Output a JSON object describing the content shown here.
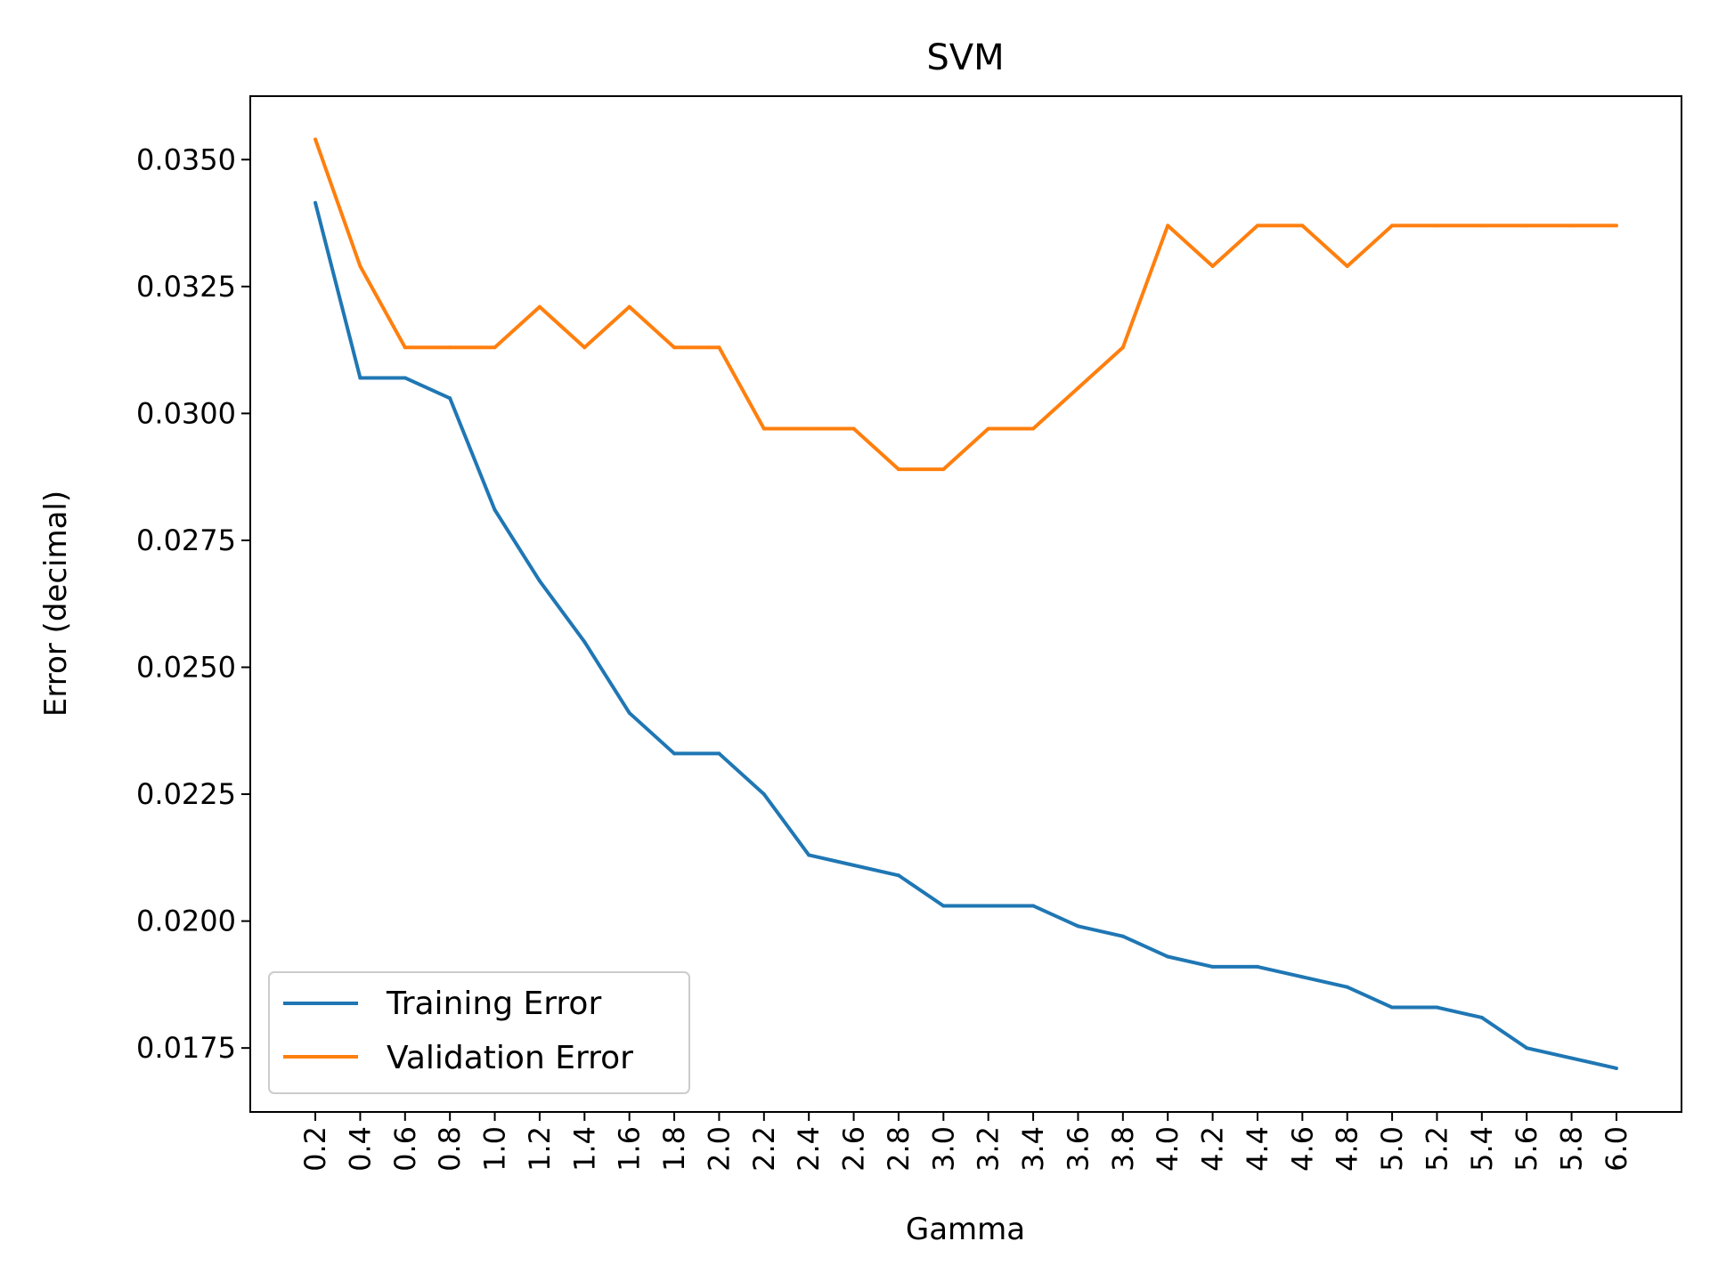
{
  "chart_data": {
    "type": "line",
    "title": "SVM",
    "xlabel": "Gamma",
    "ylabel": "Error (decimal)",
    "x": [
      0.2,
      0.4,
      0.6,
      0.8,
      1.0,
      1.2,
      1.4,
      1.6,
      1.8,
      2.0,
      2.2,
      2.4,
      2.6,
      2.8,
      3.0,
      3.2,
      3.4,
      3.6,
      3.8,
      4.0,
      4.2,
      4.4,
      4.6,
      4.8,
      5.0,
      5.2,
      5.4,
      5.6,
      5.8,
      6.0
    ],
    "x_tick_labels": [
      "0.2",
      "0.4",
      "0.6",
      "0.8",
      "1.0",
      "1.2",
      "1.4",
      "1.6",
      "1.8",
      "2.0",
      "2.2",
      "2.4",
      "2.6",
      "2.8",
      "3.0",
      "3.2",
      "3.4",
      "3.6",
      "3.8",
      "4.0",
      "4.2",
      "4.4",
      "4.6",
      "4.8",
      "5.0",
      "5.2",
      "5.4",
      "5.6",
      "5.8",
      "6.0"
    ],
    "y_ticks": [
      0.0175,
      0.02,
      0.0225,
      0.025,
      0.0275,
      0.03,
      0.0325,
      0.035
    ],
    "y_tick_labels": [
      "0.0175",
      "0.0200",
      "0.0225",
      "0.0250",
      "0.0275",
      "0.0300",
      "0.0325",
      "0.0350"
    ],
    "xlim": [
      -0.09,
      6.29
    ],
    "ylim": [
      0.01624,
      0.03625
    ],
    "grid": false,
    "legend_position": "lower-left",
    "series": [
      {
        "name": "Training Error",
        "color": "#1f77b4",
        "values": [
          0.03415,
          0.0307,
          0.0307,
          0.0303,
          0.0281,
          0.0267,
          0.0255,
          0.0241,
          0.0233,
          0.0233,
          0.0225,
          0.0213,
          0.0211,
          0.0209,
          0.0203,
          0.0203,
          0.0203,
          0.0199,
          0.0197,
          0.0193,
          0.0191,
          0.0191,
          0.0189,
          0.0187,
          0.0183,
          0.0183,
          0.0181,
          0.0175,
          0.0173,
          0.0171
        ]
      },
      {
        "name": "Validation Error",
        "color": "#ff7f0e",
        "values": [
          0.0354,
          0.0329,
          0.0313,
          0.0313,
          0.0313,
          0.0321,
          0.0313,
          0.0321,
          0.0313,
          0.0313,
          0.0297,
          0.0297,
          0.0297,
          0.0289,
          0.0289,
          0.0297,
          0.0297,
          0.0305,
          0.0313,
          0.0337,
          0.0329,
          0.0337,
          0.0337,
          0.0329,
          0.0337,
          0.0337,
          0.0337,
          0.0337,
          0.0337,
          0.0337
        ]
      }
    ]
  }
}
